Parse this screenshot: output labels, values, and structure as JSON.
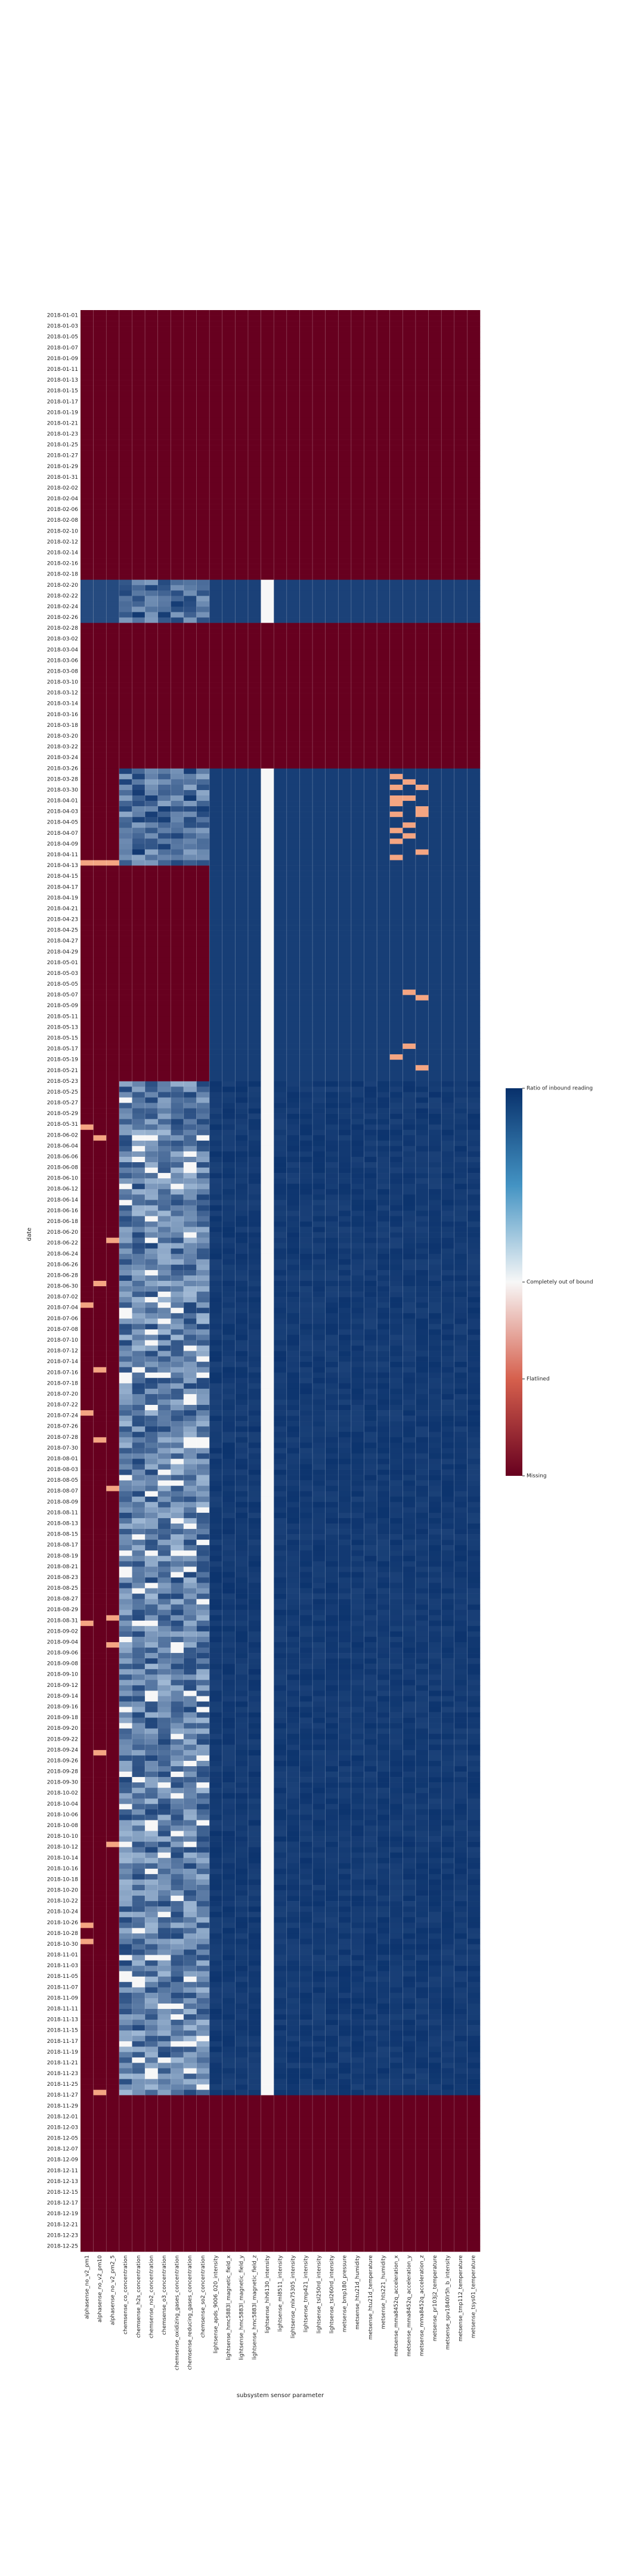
{
  "chart_data": {
    "type": "heatmap",
    "title": "",
    "xlabel": "subsystem sensor parameter",
    "ylabel": "date",
    "grid": true,
    "legend_placement": "right",
    "colorbar": {
      "labels": [
        "Ratio of inbound reading",
        "Completely out of bound",
        "Flatlined",
        "Missing"
      ],
      "values": [
        1.0,
        0.0,
        -0.5,
        -1.0
      ],
      "colors": {
        "high": "#08306b",
        "mid": "#f7f7f7",
        "flat": "#f4a582",
        "low": "#67001f"
      }
    },
    "columns": [
      "alphasense_no_v2_pm1",
      "alphasense_no_v2_pm10",
      "alphasense_no_v2_pm2_5",
      "chemsense_co_concentration",
      "chemsense_h2s_concentration",
      "chemsense_no2_concentration",
      "chemsense_o3_concentration",
      "chemsense_oxidizing_gases_concentration",
      "chemsense_reducing_gases_concentration",
      "chemsense_so2_concentration",
      "lightsense_apds_9006_020_intensity",
      "lightsense_hmc5883l_magnetic_field_x",
      "lightsense_hmc5883l_magnetic_field_y",
      "lightsense_hmc5883l_magnetic_field_z",
      "lightsense_hih6130_intensity",
      "lightsense_ml8511_intensity",
      "lightsense_mlx75305_intensity",
      "lightsense_tmp421_intensity",
      "lightsense_tsl250rd_intensity",
      "lightsense_tsl260rd_intensity",
      "metsense_bmp180_pressure",
      "metsense_htu21d_humidity",
      "metsense_htu21d_temperature",
      "metsense_hts221_humidity",
      "metsense_mma8452q_acceleration_x",
      "metsense_mma8452q_acceleration_y",
      "metsense_mma8452q_acceleration_z",
      "metsense_pr103j2_temperature",
      "metsense_spv1840lr5h_b_intensity",
      "metsense_tmp112_temperature",
      "metsense_tsys01_temperature"
    ],
    "rows": {
      "start": "2018-01-01",
      "end": "2018-12-26",
      "labeled_every": 2,
      "count": 360
    },
    "segments": [
      {
        "from": "2018-01-01",
        "to": "2018-02-19",
        "pattern": "all missing"
      },
      {
        "from": "2018-02-20",
        "to": "2018-02-27",
        "pattern": "mostly inbound; lightsense_hih6130_intensity completely out of bound"
      },
      {
        "from": "2018-02-28",
        "to": "2018-03-26",
        "pattern": "all missing"
      },
      {
        "from": "2018-03-27",
        "to": "2018-04-13",
        "pattern": "mostly inbound; chemsense partial; some metsense_mma8452q flatlined"
      },
      {
        "from": "2018-04-14",
        "to": "2018-05-23",
        "pattern": "alphasense and chemsense missing; others inbound"
      },
      {
        "from": "2018-05-24",
        "to": "2018-11-27",
        "pattern": "alphasense mostly missing; chemsense partial inbound; others inbound"
      },
      {
        "from": "2018-11-28",
        "to": "2018-12-26",
        "pattern": "all missing"
      }
    ]
  }
}
